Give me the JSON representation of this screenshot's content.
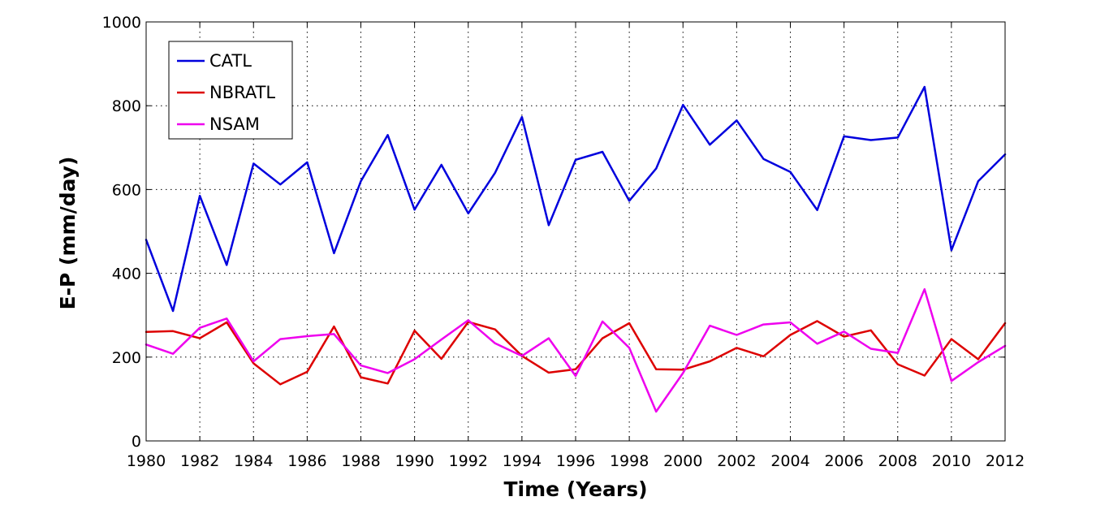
{
  "chart_data": {
    "type": "line",
    "title": "",
    "xlabel": "Time (Years)",
    "ylabel": "E-P (mm/day)",
    "xlim": [
      1980,
      2012
    ],
    "ylim": [
      0,
      1000
    ],
    "xticks": [
      "1980",
      "1982",
      "1984",
      "1986",
      "1988",
      "1990",
      "1992",
      "1994",
      "1996",
      "1998",
      "2000",
      "2002",
      "2004",
      "2006",
      "2008",
      "2010",
      "2012"
    ],
    "yticks": [
      "0",
      "200",
      "400",
      "600",
      "800",
      "1000"
    ],
    "grid": true,
    "legend_position": "top-left",
    "x": [
      1980,
      1981,
      1982,
      1983,
      1984,
      1985,
      1986,
      1987,
      1988,
      1989,
      1990,
      1991,
      1992,
      1993,
      1994,
      1995,
      1996,
      1997,
      1998,
      1999,
      2000,
      2001,
      2002,
      2003,
      2004,
      2005,
      2006,
      2007,
      2008,
      2009,
      2010,
      2011,
      2012
    ],
    "series": [
      {
        "name": "CATL",
        "color": "#0000dd",
        "values": [
          480,
          310,
          585,
          420,
          662,
          612,
          665,
          448,
          620,
          730,
          552,
          659,
          543,
          640,
          773,
          515,
          671,
          690,
          573,
          650,
          802,
          707,
          765,
          673,
          642,
          551,
          727,
          718,
          724,
          845,
          455,
          620,
          684
        ]
      },
      {
        "name": "NBRATL",
        "color": "#dd0000",
        "values": [
          260,
          262,
          245,
          283,
          185,
          135,
          165,
          273,
          152,
          137,
          263,
          196,
          284,
          266,
          203,
          163,
          171,
          245,
          281,
          171,
          170,
          190,
          222,
          202,
          253,
          286,
          249,
          264,
          183,
          156,
          243,
          195,
          281
        ]
      },
      {
        "name": "NSAM",
        "color": "#ee00ee",
        "values": [
          230,
          208,
          270,
          292,
          190,
          243,
          250,
          255,
          180,
          162,
          195,
          242,
          288,
          233,
          203,
          245,
          155,
          285,
          222,
          70,
          162,
          275,
          253,
          278,
          283,
          232,
          261,
          220,
          210,
          362,
          143,
          188,
          227
        ]
      }
    ]
  }
}
